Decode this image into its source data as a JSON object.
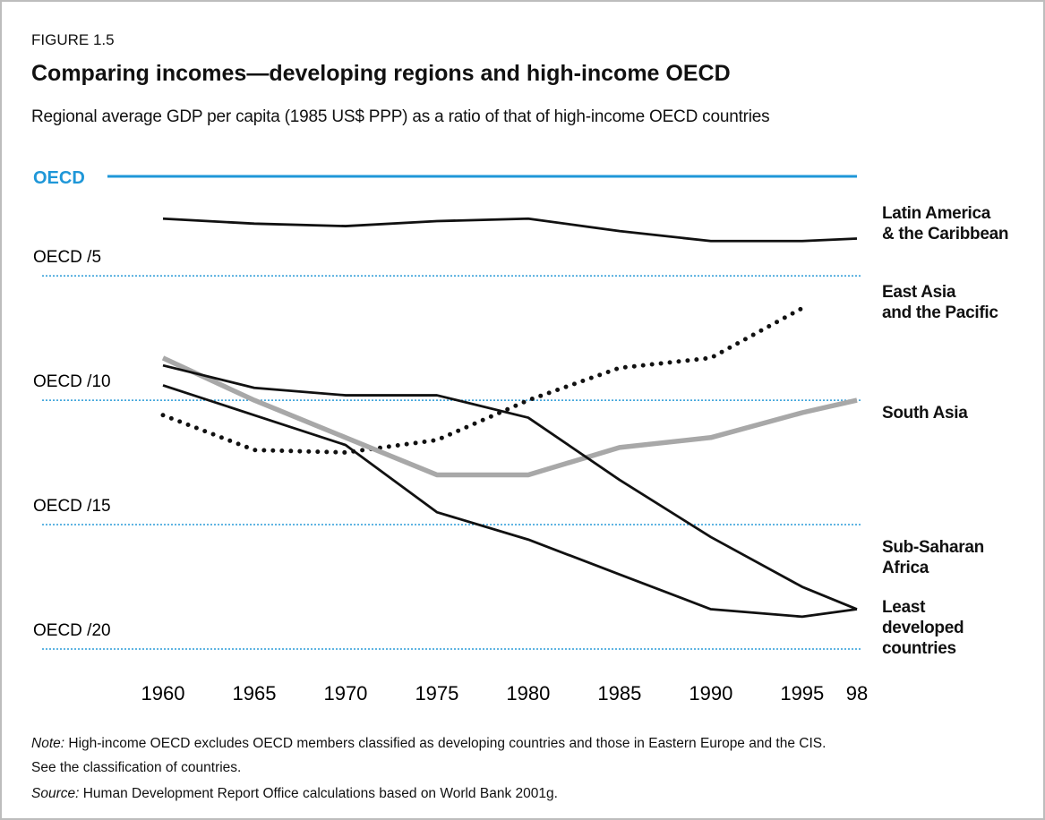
{
  "figure_label": "FIGURE 1.5",
  "chart_data": {
    "type": "line",
    "title": "Comparing incomes—developing regions and high-income OECD",
    "subtitle": "Regional average GDP per capita (1985 US$ PPP) as a ratio of that of high-income OECD countries",
    "x": [
      1960,
      1965,
      1970,
      1975,
      1980,
      1985,
      1990,
      1995,
      1998
    ],
    "xlim": [
      1960,
      1998
    ],
    "xticks": [
      1960,
      1965,
      1970,
      1975,
      1980,
      1985,
      1990,
      1995,
      {
        "value": 1998,
        "label": "98"
      }
    ],
    "ylim": [
      20,
      1
    ],
    "yticks": [
      {
        "value": 1,
        "label": "OECD"
      },
      {
        "value": 5,
        "label": "OECD /5"
      },
      {
        "value": 10,
        "label": "OECD /10"
      },
      {
        "value": 15,
        "label": "OECD /15"
      },
      {
        "value": 20,
        "label": "OECD /20"
      }
    ],
    "grid": true,
    "grid_color": "#2a9bd8",
    "baseline_color": "#1f97d8",
    "series": [
      {
        "name": "Latin America\n& the Caribbean",
        "color": "#111111",
        "style": "solid",
        "values": [
          2.7,
          2.9,
          3.0,
          2.8,
          2.7,
          3.2,
          3.6,
          3.6,
          3.5
        ]
      },
      {
        "name": "East  Asia\nand the Pacific",
        "color": "#111111",
        "style": "dotted",
        "values": [
          10.6,
          12.0,
          12.1,
          11.6,
          10.0,
          8.7,
          8.3,
          6.3,
          null
        ]
      },
      {
        "name": "South Asia",
        "color": "#a8a8a8",
        "style": "thick",
        "values": [
          8.3,
          10.0,
          11.5,
          13.0,
          13.0,
          11.9,
          11.5,
          10.5,
          10.0
        ]
      },
      {
        "name": "Sub-Saharan\nAfrica",
        "color": "#111111",
        "style": "solid",
        "values": [
          8.6,
          9.5,
          9.8,
          9.8,
          10.7,
          13.2,
          15.5,
          17.5,
          18.4
        ]
      },
      {
        "name": "Least\ndeveloped\ncountries",
        "color": "#111111",
        "style": "solid",
        "values": [
          9.4,
          10.6,
          11.8,
          14.5,
          15.6,
          17.0,
          18.4,
          18.7,
          18.4
        ]
      }
    ]
  },
  "note_label": "Note:",
  "note": [
    "High-income OECD excludes OECD members classified as developing countries and those in Eastern Europe and the CIS.",
    "See the classification of countries."
  ],
  "source_label": "Source:",
  "source": "Human Development Report Office calculations based on World Bank 2001g."
}
